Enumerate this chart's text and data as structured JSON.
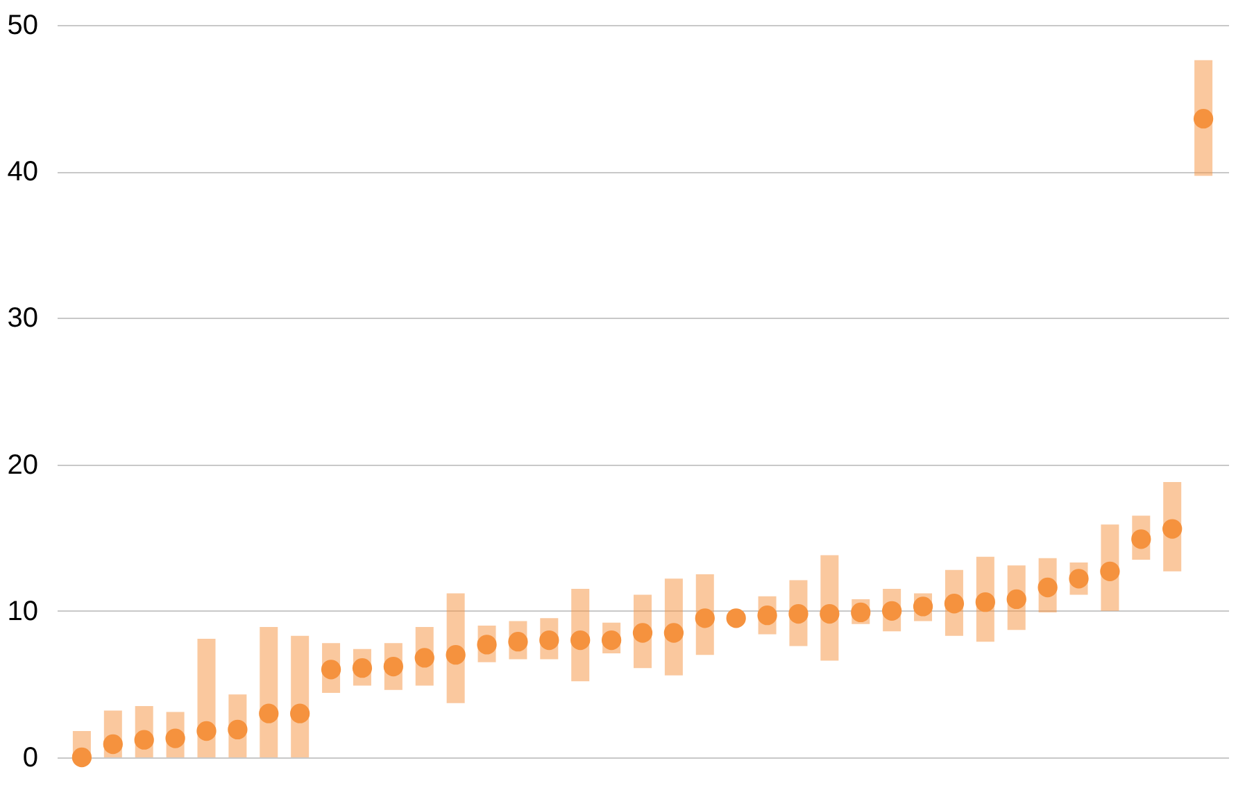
{
  "chart_data": {
    "type": "scatter",
    "categories": [
      null,
      null,
      null,
      null,
      null,
      null,
      null,
      null,
      null,
      null,
      null,
      null,
      null,
      null,
      null,
      null,
      null,
      null,
      null,
      null,
      null,
      null,
      null,
      null,
      null,
      null,
      null,
      null,
      null,
      null,
      null,
      null,
      null,
      null,
      null,
      null,
      null
    ],
    "series": [
      {
        "color": "#f5923e",
        "values": [
          0,
          0.9,
          1.2,
          1.3,
          1.8,
          1.9,
          3.0,
          3.0,
          6.0,
          6.1,
          6.2,
          6.8,
          7.0,
          7.7,
          7.9,
          8.0,
          8.0,
          8.0,
          8.5,
          8.5,
          9.5,
          9.5,
          9.7,
          9.8,
          9.8,
          9.9,
          10.0,
          10.3,
          10.5,
          10.6,
          10.8,
          11.6,
          12.2,
          12.7,
          14.9,
          15.6,
          43.6
        ],
        "errors": [
          [
            0,
            1.8
          ],
          [
            0,
            3.2
          ],
          [
            0,
            3.5
          ],
          [
            0,
            3.1
          ],
          [
            0,
            8.1
          ],
          [
            0,
            4.3
          ],
          [
            0,
            8.9
          ],
          [
            0,
            8.3
          ],
          [
            4.4,
            7.8
          ],
          [
            4.9,
            7.4
          ],
          [
            4.6,
            7.8
          ],
          [
            4.9,
            8.9
          ],
          [
            3.7,
            11.2
          ],
          [
            6.5,
            9.0
          ],
          [
            6.7,
            9.3
          ],
          [
            6.7,
            9.5
          ],
          [
            5.2,
            11.5
          ],
          [
            7.1,
            9.2
          ],
          [
            6.1,
            11.1
          ],
          [
            5.6,
            12.2
          ],
          [
            7.0,
            12.5
          ],
          null,
          [
            8.4,
            11.0
          ],
          [
            7.6,
            12.1
          ],
          [
            6.6,
            13.8
          ],
          [
            9.1,
            10.8
          ],
          [
            8.6,
            11.5
          ],
          [
            9.3,
            11.2
          ],
          [
            8.3,
            12.8
          ],
          [
            7.9,
            13.7
          ],
          [
            8.7,
            13.1
          ],
          [
            9.9,
            13.6
          ],
          [
            11.1,
            13.3
          ],
          [
            10.0,
            15.9
          ],
          [
            13.5,
            16.5
          ],
          [
            12.7,
            18.8
          ],
          [
            39.7,
            47.6
          ]
        ]
      }
    ],
    "ylim": [
      0,
      50
    ],
    "yticks": [
      0,
      10,
      20,
      30,
      40,
      50
    ],
    "grid": "y",
    "marker": "circle",
    "tick_labels": "y"
  }
}
